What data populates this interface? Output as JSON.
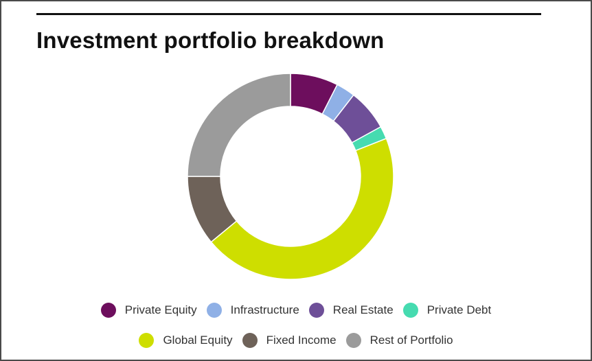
{
  "chart_data": {
    "type": "pie",
    "title": "Investment portfolio breakdown",
    "donut": true,
    "categories": [
      "Private Equity",
      "Infrastructure",
      "Real Estate",
      "Private Debt",
      "Global Equity",
      "Fixed Income",
      "Rest of Portfolio"
    ],
    "values": [
      7.5,
      3,
      6.5,
      2,
      45,
      11,
      25
    ],
    "colors": [
      "#6d0e5d",
      "#8fb0e6",
      "#6e4f98",
      "#46dbb0",
      "#cede00",
      "#6e6259",
      "#9b9b9b"
    ],
    "legend_position": "bottom"
  }
}
